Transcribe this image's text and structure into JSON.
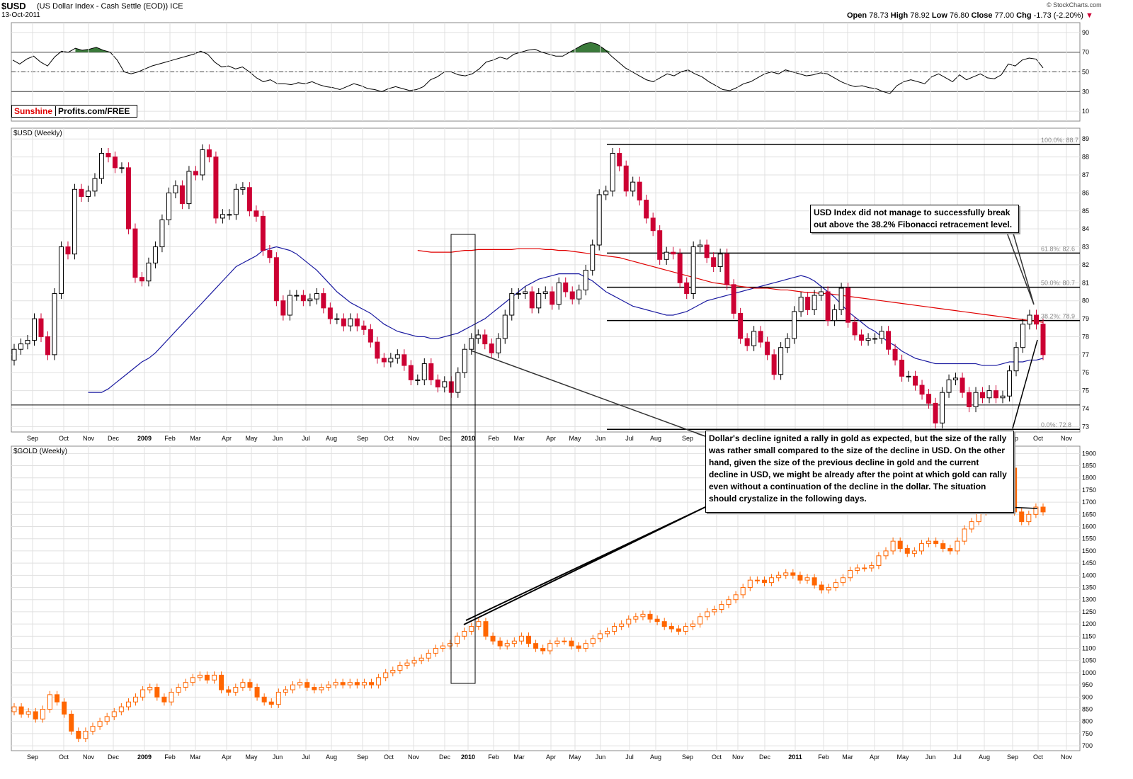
{
  "header": {
    "symbol": "$USD",
    "description": "(US Dollar Index - Cash Settle (EOD)) ICE",
    "date": "13-Oct-2011",
    "copyright": "© StockCharts.com",
    "open_label": "Open",
    "open": "78.73",
    "high_label": "High",
    "high": "78.92",
    "low_label": "Low",
    "low": "76.80",
    "close_label": "Close",
    "close": "77.00",
    "chg_label": "Chg",
    "chg": "-1.73 (-2.20%)"
  },
  "panels": {
    "usd_title": "$USD (Weekly)",
    "gold_title": "$GOLD (Weekly)"
  },
  "brand": {
    "part1": "Sunshine",
    "part2": "Profits.com/FREE"
  },
  "annotations": {
    "note1": "USD Index did not manage to successfully break out above the 38.2% Fibonacci retracement level.",
    "note2": "Dollar's decline ignited a rally in gold as expected, but the size of the rally was rather small compared to the size of the decline in USD. On the other hand, given the size of the previous decline in gold and the current decline in USD, we might be already after the point at which gold can rally even without a continuation of the decline in the dollar. The situation should crystalize in the following days."
  },
  "colors": {
    "up": "#000000",
    "down": "#cc0033",
    "gold": "#ff6600",
    "ma50": "#1a1aa0",
    "ma200": "#e00000",
    "rsi_fill": "#3a7a3a",
    "grid": "#e0e0e0"
  },
  "chart_data": [
    {
      "name": "rsi",
      "type": "line",
      "yticks": [
        10,
        30,
        50,
        70,
        90
      ],
      "ylim": [
        0,
        100
      ],
      "reference_lines": [
        30,
        50,
        70
      ],
      "values": [
        62,
        58,
        63,
        66,
        60,
        56,
        65,
        71,
        70,
        74,
        72,
        73,
        75,
        72,
        70,
        62,
        50,
        48,
        50,
        53,
        56,
        58,
        60,
        62,
        64,
        66,
        68,
        71,
        68,
        60,
        55,
        56,
        53,
        55,
        50,
        44,
        40,
        42,
        38,
        38,
        37,
        39,
        38,
        40,
        37,
        35,
        34,
        32,
        35,
        38,
        36,
        33,
        32,
        30,
        33,
        35,
        33,
        31,
        32,
        35,
        42,
        45,
        50,
        50,
        47,
        46,
        48,
        53,
        60,
        62,
        65,
        63,
        68,
        70,
        72,
        73,
        70,
        68,
        66,
        66,
        70,
        74,
        78,
        80,
        78,
        73,
        66,
        60,
        54,
        50,
        46,
        42,
        40,
        44,
        48,
        46,
        50,
        52,
        48,
        45,
        40,
        36,
        32,
        31,
        34,
        38,
        40,
        44,
        48,
        50,
        48,
        52,
        50,
        48,
        46,
        47,
        49,
        48,
        44,
        40,
        37,
        35,
        36,
        34,
        33,
        30,
        28,
        36,
        40,
        42,
        40,
        38,
        45,
        48,
        44,
        40,
        47,
        42,
        45,
        48,
        44,
        43,
        47,
        58,
        56,
        62,
        64,
        63,
        54
      ],
      "overbought_fill_weeks": [
        [
          9,
          22
        ],
        [
          78,
          86
        ]
      ]
    },
    {
      "name": "USD",
      "type": "candlestick",
      "period": "weekly",
      "x_ticks": [
        "Sep",
        "Oct",
        "Nov",
        "Dec",
        "2009",
        "Feb",
        "Mar",
        "Apr",
        "May",
        "Jun",
        "Jul",
        "Aug",
        "Sep",
        "Oct",
        "Nov",
        "Dec",
        "2010",
        "Feb",
        "Mar",
        "Apr",
        "May",
        "Jun",
        "Jul",
        "Aug",
        "Sep",
        "Oct",
        "Nov",
        "Dec",
        "2011",
        "Feb",
        "Mar",
        "Apr",
        "May",
        "Jun",
        "Jul",
        "Aug",
        "Sep",
        "Oct",
        "Nov"
      ],
      "ylim": [
        72.7,
        89.6
      ],
      "yticks": [
        73,
        74,
        75,
        76,
        77,
        78,
        79,
        80,
        81,
        82,
        83,
        84,
        85,
        86,
        87,
        88,
        89
      ],
      "close_weekly": [
        77.3,
        77.6,
        77.8,
        79.0,
        78.0,
        77.0,
        80.4,
        83.0,
        82.6,
        86.2,
        85.8,
        86.1,
        86.8,
        88.2,
        88.0,
        87.4,
        87.4,
        84.0,
        81.3,
        81.1,
        82.1,
        83.0,
        84.5,
        86.0,
        86.4,
        85.4,
        87.2,
        87.0,
        88.4,
        88.0,
        84.6,
        84.8,
        84.8,
        86.2,
        86.3,
        85.0,
        84.7,
        82.8,
        82.4,
        80.0,
        79.2,
        80.3,
        80.3,
        80.0,
        80.1,
        80.4,
        79.6,
        79.0,
        79.0,
        78.6,
        79.0,
        78.6,
        78.4,
        77.7,
        76.8,
        76.6,
        76.8,
        77.0,
        76.4,
        75.6,
        75.6,
        76.5,
        75.6,
        75.2,
        75.5,
        74.9,
        76.0,
        77.3,
        77.9,
        78.1,
        77.6,
        77.1,
        77.9,
        79.2,
        80.4,
        80.4,
        80.5,
        79.6,
        80.4,
        80.5,
        79.8,
        81.0,
        80.5,
        80.1,
        80.6,
        81.7,
        83.1,
        85.9,
        86.1,
        88.2,
        87.5,
        86.1,
        86.6,
        85.6,
        84.6,
        83.9,
        82.3,
        82.7,
        82.6,
        81.0,
        80.4,
        83.0,
        83.1,
        82.4,
        81.9,
        82.6,
        80.9,
        79.3,
        77.9,
        77.5,
        78.3,
        77.7,
        77.0,
        75.9,
        77.4,
        77.9,
        79.4,
        80.2,
        79.5,
        80.3,
        80.5,
        78.9,
        79.5,
        80.7,
        78.8,
        78.1,
        77.8,
        77.9,
        77.9,
        78.3,
        77.3,
        76.7,
        75.8,
        75.8,
        75.3,
        74.8,
        74.3,
        73.2,
        74.9,
        75.6,
        75.7,
        74.9,
        74.1,
        74.9,
        74.6,
        75.0,
        74.6,
        74.7,
        76.1,
        77.4,
        78.7,
        79.2,
        78.7,
        77.0
      ],
      "series": [
        {
          "name": "MA(50)",
          "values": [
            74.9,
            74.9,
            74.9,
            75.1,
            75.4,
            75.7,
            76.0,
            76.3,
            76.6,
            76.8,
            77.1,
            77.5,
            77.9,
            78.3,
            78.7,
            79.1,
            79.5,
            79.9,
            80.3,
            80.7,
            81.1,
            81.5,
            81.9,
            82.1,
            82.3,
            82.5,
            82.8,
            82.9,
            83.0,
            82.9,
            82.8,
            82.6,
            82.3,
            82.0,
            81.7,
            81.3,
            80.9,
            80.5,
            80.2,
            79.9,
            79.7,
            79.5,
            79.3,
            79.0,
            78.7,
            78.5,
            78.3,
            78.2,
            78.1,
            78.0,
            78.0,
            77.9,
            77.9,
            78.0,
            78.1,
            78.2,
            78.4,
            78.6,
            78.8,
            79.0,
            79.3,
            79.6,
            79.9,
            80.2,
            80.5,
            80.8,
            81.0,
            81.2,
            81.3,
            81.4,
            81.5,
            81.5,
            81.5,
            81.5,
            81.3,
            81.1,
            80.8,
            80.5,
            80.3,
            80.1,
            79.9,
            79.7,
            79.6,
            79.5,
            79.4,
            79.3,
            79.2,
            79.2,
            79.3,
            79.4,
            79.6,
            79.8,
            80.0,
            80.1,
            80.2,
            80.3,
            80.4,
            80.5,
            80.6,
            80.7,
            80.8,
            80.9,
            81.0,
            81.1,
            81.2,
            81.3,
            81.4,
            81.3,
            81.1,
            80.8,
            80.5,
            80.2,
            79.8,
            79.4,
            79.1,
            78.8,
            78.5,
            78.3,
            78.0,
            77.7,
            77.5,
            77.2,
            77.0,
            76.8,
            76.7,
            76.6,
            76.5,
            76.5,
            76.5,
            76.5,
            76.5,
            76.5,
            76.5,
            76.4,
            76.4,
            76.4,
            76.5,
            76.6,
            76.6,
            76.6,
            76.7,
            76.7,
            76.8
          ]
        },
        {
          "name": "MA(200)",
          "values": [
            82.8,
            82.75,
            82.7,
            82.7,
            82.7,
            82.7,
            82.75,
            82.8,
            82.8,
            82.85,
            82.85,
            82.85,
            82.85,
            82.85,
            82.85,
            82.9,
            82.9,
            82.9,
            82.9,
            82.85,
            82.85,
            82.8,
            82.8,
            82.75,
            82.7,
            82.65,
            82.6,
            82.55,
            82.5,
            82.45,
            82.4,
            82.3,
            82.2,
            82.1,
            82.0,
            81.9,
            81.8,
            81.7,
            81.6,
            81.5,
            81.4,
            81.3,
            81.2,
            81.1,
            81.0,
            80.95,
            80.9,
            80.85,
            80.8,
            80.75,
            80.7,
            80.7,
            80.7,
            80.65,
            80.6,
            80.6,
            80.55,
            80.5,
            80.45,
            80.45,
            80.4,
            80.4,
            80.35,
            80.3,
            80.25,
            80.2,
            80.15,
            80.1,
            80.05,
            80.0,
            79.95,
            79.9,
            79.85,
            79.8,
            79.75,
            79.7,
            79.65,
            79.6,
            79.55,
            79.5,
            79.45,
            79.4,
            79.35,
            79.3,
            79.25,
            79.2,
            79.15,
            79.1,
            79.05,
            79.0,
            78.95,
            78.9,
            78.85,
            78.8
          ]
        }
      ],
      "fibonacci": [
        {
          "label": "100.0%: 88.7",
          "value": 88.7
        },
        {
          "label": "61.8%: 82.6",
          "value": 82.65
        },
        {
          "label": "50.0%: 80.7",
          "value": 80.75
        },
        {
          "label": "38.2%: 78.9",
          "value": 78.9
        },
        {
          "label": "0.0%: 72.8",
          "value": 72.85
        }
      ],
      "support_line": 74.2
    },
    {
      "name": "GOLD",
      "type": "candlestick",
      "period": "weekly",
      "x_ticks": [
        "Sep",
        "Oct",
        "Nov",
        "Dec",
        "2009",
        "Feb",
        "Mar",
        "Apr",
        "May",
        "Jun",
        "Jul",
        "Aug",
        "Sep",
        "Oct",
        "Nov",
        "Dec",
        "2010",
        "Feb",
        "Mar",
        "Apr",
        "May",
        "Jun",
        "Jul",
        "Aug",
        "Sep",
        "Oct",
        "Nov",
        "Dec",
        "2011",
        "Feb",
        "Mar",
        "Apr",
        "May",
        "Jun",
        "Jul",
        "Aug",
        "Sep",
        "Oct",
        "Nov"
      ],
      "ylim": [
        680,
        1930
      ],
      "yticks": [
        700,
        750,
        800,
        850,
        900,
        950,
        1000,
        1050,
        1100,
        1150,
        1200,
        1250,
        1300,
        1350,
        1400,
        1450,
        1500,
        1550,
        1600,
        1650,
        1700,
        1750,
        1800,
        1850,
        1900
      ],
      "close_weekly": [
        860,
        830,
        840,
        810,
        850,
        910,
        880,
        830,
        760,
        730,
        760,
        780,
        800,
        820,
        840,
        860,
        880,
        900,
        930,
        940,
        900,
        880,
        920,
        940,
        960,
        980,
        990,
        970,
        990,
        930,
        920,
        940,
        960,
        940,
        900,
        880,
        870,
        920,
        930,
        950,
        960,
        940,
        930,
        940,
        950,
        960,
        950,
        960,
        950,
        960,
        950,
        980,
        1000,
        1010,
        1030,
        1040,
        1050,
        1060,
        1080,
        1100,
        1110,
        1120,
        1150,
        1170,
        1190,
        1210,
        1150,
        1130,
        1110,
        1120,
        1130,
        1150,
        1120,
        1100,
        1090,
        1120,
        1130,
        1130,
        1110,
        1100,
        1120,
        1140,
        1160,
        1170,
        1190,
        1200,
        1220,
        1230,
        1240,
        1220,
        1210,
        1190,
        1180,
        1170,
        1190,
        1200,
        1230,
        1250,
        1260,
        1280,
        1300,
        1320,
        1350,
        1380,
        1380,
        1370,
        1390,
        1400,
        1410,
        1400,
        1380,
        1390,
        1360,
        1340,
        1350,
        1370,
        1390,
        1420,
        1430,
        1430,
        1440,
        1480,
        1500,
        1540,
        1510,
        1490,
        1500,
        1530,
        1540,
        1530,
        1510,
        1500,
        1540,
        1590,
        1620,
        1660,
        1700,
        1780,
        1850,
        1840,
        1660,
        1620,
        1650,
        1680,
        1660
      ]
    }
  ]
}
